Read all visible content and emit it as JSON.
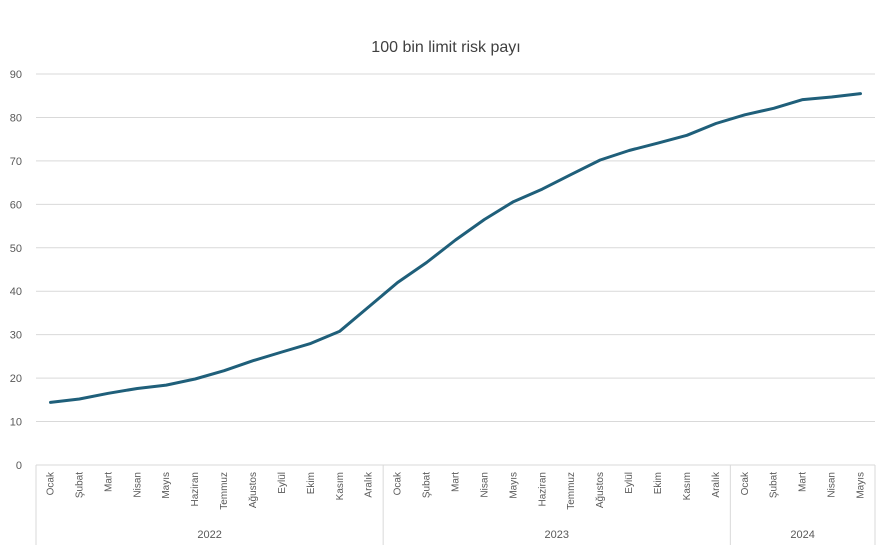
{
  "chart_data": {
    "type": "line",
    "title": "100 bin limit risk payı",
    "ylim": [
      0,
      90
    ],
    "y_ticks": [
      0,
      10,
      20,
      30,
      40,
      50,
      60,
      70,
      80,
      90
    ],
    "categories": [
      "Ocak",
      "Şubat",
      "Mart",
      "Nisan",
      "Mayıs",
      "Haziran",
      "Temmuz",
      "Ağustos",
      "Eylül",
      "Ekim",
      "Kasım",
      "Aralık",
      "Ocak",
      "Şubat",
      "Mart",
      "Nisan",
      "Mayıs",
      "Haziran",
      "Temmuz",
      "Ağustos",
      "Eylül",
      "Ekim",
      "Kasım",
      "Aralık",
      "Ocak",
      "Şubat",
      "Mart",
      "Nisan",
      "Mayıs"
    ],
    "year_groups": [
      {
        "label": "2022",
        "count": 12
      },
      {
        "label": "2023",
        "count": 12
      },
      {
        "label": "2024",
        "count": 5
      }
    ],
    "series": [
      {
        "values": [
          14.4,
          15.2,
          16.5,
          17.6,
          18.4,
          19.8,
          21.7,
          24.0,
          26.0,
          28.0,
          30.8,
          36.4,
          42.0,
          46.6,
          51.8,
          56.5,
          60.6,
          63.5,
          66.9,
          70.2,
          72.4,
          74.1,
          75.9,
          78.6,
          80.6,
          82.1,
          84.1,
          84.7,
          85.5
        ]
      }
    ],
    "grid": true,
    "legend": "none",
    "colors": {
      "line": "#1f5f7a",
      "grid": "#d9d9d9",
      "text": "#595959"
    }
  }
}
